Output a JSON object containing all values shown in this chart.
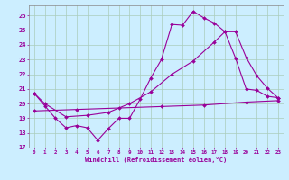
{
  "xlabel": "Windchill (Refroidissement éolien,°C)",
  "bg_color": "#cceeff",
  "line_color": "#990099",
  "grid_color": "#aaccbb",
  "xlim": [
    -0.5,
    23.5
  ],
  "ylim": [
    17,
    26.7
  ],
  "xticks": [
    0,
    1,
    2,
    3,
    4,
    5,
    6,
    7,
    8,
    9,
    10,
    11,
    12,
    13,
    14,
    15,
    16,
    17,
    18,
    19,
    20,
    21,
    22,
    23
  ],
  "yticks": [
    17,
    18,
    19,
    20,
    21,
    22,
    23,
    24,
    25,
    26
  ],
  "series1_x": [
    0,
    1,
    2,
    3,
    4,
    5,
    6,
    7,
    8,
    9,
    10,
    11,
    12,
    13,
    14,
    15,
    16,
    17,
    18,
    19,
    20,
    21,
    22,
    23
  ],
  "series1_y": [
    20.7,
    19.85,
    19.0,
    18.35,
    18.5,
    18.35,
    17.5,
    18.3,
    19.0,
    19.0,
    20.3,
    21.75,
    23.0,
    25.4,
    25.35,
    26.3,
    25.85,
    25.5,
    24.9,
    23.1,
    21.0,
    20.9,
    20.5,
    20.4
  ],
  "series2_x": [
    0,
    1,
    3,
    5,
    7,
    9,
    11,
    13,
    15,
    17,
    18,
    19,
    20,
    21,
    22,
    23
  ],
  "series2_y": [
    20.7,
    20.0,
    19.1,
    19.2,
    19.4,
    20.0,
    20.8,
    22.0,
    22.9,
    24.2,
    24.9,
    24.9,
    23.15,
    21.9,
    21.05,
    20.4
  ],
  "series3_x": [
    0,
    4,
    8,
    12,
    16,
    20,
    23
  ],
  "series3_y": [
    19.5,
    19.6,
    19.7,
    19.8,
    19.9,
    20.1,
    20.2
  ]
}
